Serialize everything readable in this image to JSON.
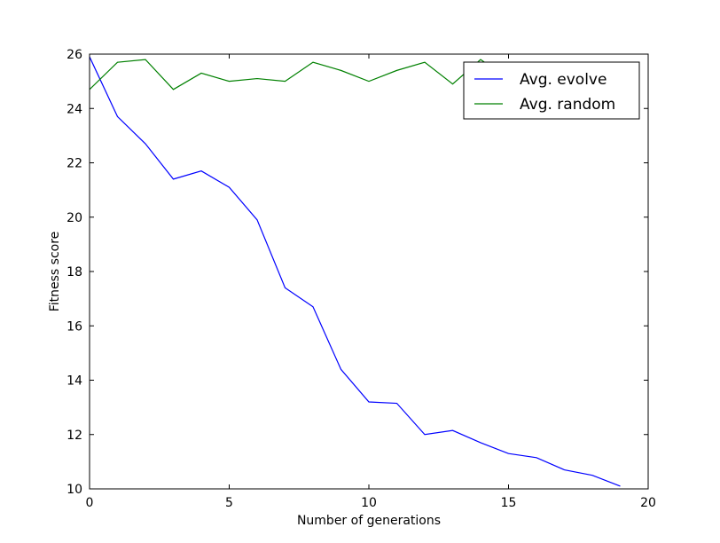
{
  "chart_data": {
    "type": "line",
    "xlabel": "Number of generations",
    "ylabel": "Fitness score",
    "xlim": [
      0,
      20
    ],
    "ylim": [
      10,
      26
    ],
    "x_ticks": [
      0,
      5,
      10,
      15,
      20
    ],
    "y_ticks": [
      10,
      12,
      14,
      16,
      18,
      20,
      22,
      24,
      26
    ],
    "grid": false,
    "legend_position": "top-right",
    "x": [
      0,
      1,
      2,
      3,
      4,
      5,
      6,
      7,
      8,
      9,
      10,
      11,
      12,
      13,
      14,
      15,
      16,
      17,
      18,
      19
    ],
    "series": [
      {
        "name": "Avg. evolve",
        "color": "#0000ff",
        "values": [
          25.9,
          23.7,
          22.7,
          21.4,
          21.7,
          21.1,
          19.9,
          17.4,
          16.7,
          14.4,
          13.2,
          13.15,
          12.0,
          12.15,
          11.7,
          11.3,
          11.15,
          10.7,
          10.5,
          10.1
        ]
      },
      {
        "name": "Avg. random",
        "color": "#008000",
        "values": [
          24.7,
          25.7,
          25.8,
          24.7,
          25.3,
          25.0,
          25.1,
          25.0,
          25.7,
          25.4,
          25.0,
          25.4,
          25.7,
          24.9,
          25.8,
          25.1,
          25.4,
          25.2,
          25.3,
          25.4
        ]
      }
    ]
  }
}
